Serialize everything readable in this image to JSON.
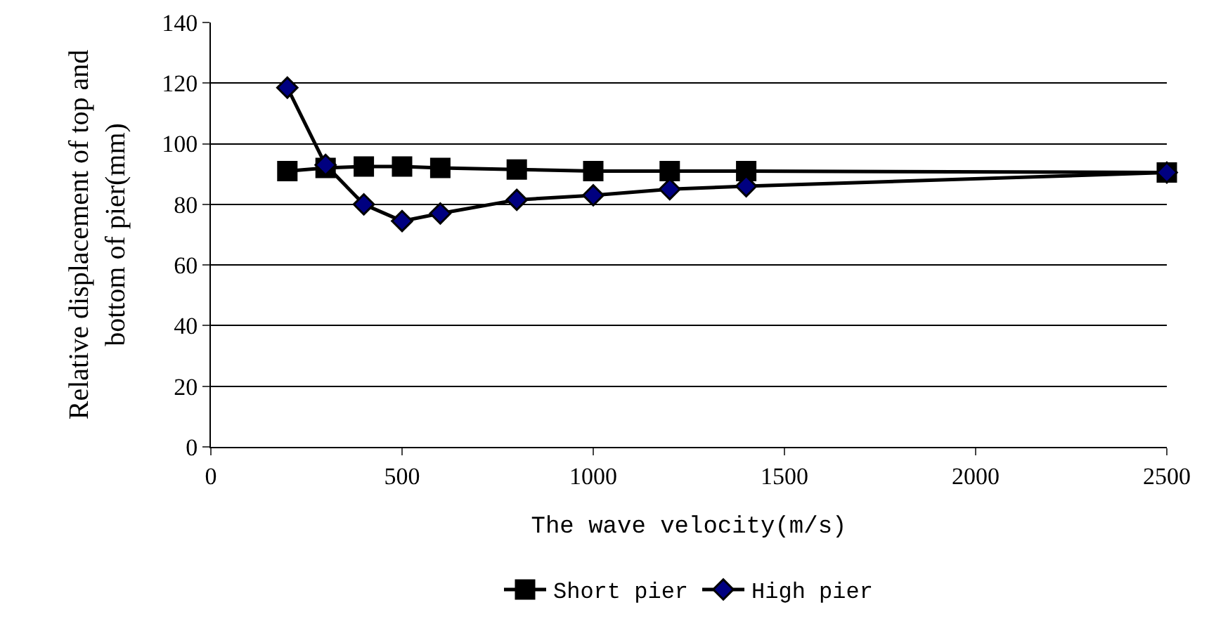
{
  "chart_data": {
    "type": "line",
    "xlabel": "The wave velocity(m/s)",
    "ylabel": "Relative displacement of top and bottom of pier(mm)",
    "x": [
      200,
      300,
      400,
      500,
      600,
      800,
      1000,
      1200,
      1400,
      2500
    ],
    "series": [
      {
        "name": "Short pier",
        "color": "#000000",
        "marker": "square",
        "values": [
          91,
          92,
          92.5,
          92.5,
          92,
          91.5,
          91,
          91,
          91,
          90.5
        ]
      },
      {
        "name": "High pier",
        "color": "#000080",
        "marker": "diamond",
        "values": [
          118.5,
          93,
          80,
          74.5,
          77,
          81.5,
          83,
          85,
          86,
          90.5
        ]
      }
    ],
    "xlim": [
      0,
      2500
    ],
    "xticks": [
      0,
      500,
      1000,
      1500,
      2000,
      2500
    ],
    "ylim": [
      0,
      140
    ],
    "yticks": [
      0,
      20,
      40,
      60,
      80,
      100,
      120,
      140
    ],
    "grid": "y",
    "legend": "bottom"
  }
}
